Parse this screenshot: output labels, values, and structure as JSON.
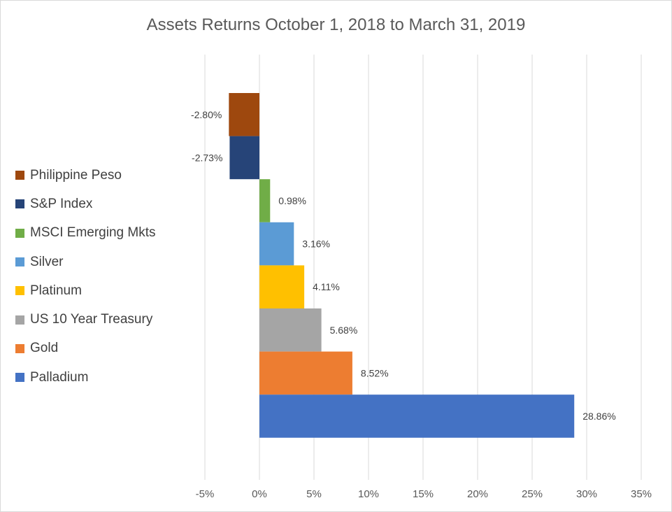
{
  "chart_data": {
    "type": "bar",
    "orientation": "horizontal",
    "title": "Assets Returns October 1, 2018 to March 31, 2019",
    "xlim": [
      -5,
      35
    ],
    "xticks": [
      -5,
      0,
      5,
      10,
      15,
      20,
      25,
      30,
      35
    ],
    "xtick_labels": [
      "-5%",
      "0%",
      "5%",
      "10%",
      "15%",
      "20%",
      "25%",
      "30%",
      "35%"
    ],
    "grid": "vertical",
    "legend_position": "left",
    "categories": [
      "Philippine Peso",
      "S&P Index",
      "MSCI Emerging Mkts",
      "Silver",
      "Platinum",
      "US 10 Year Treasury",
      "Gold",
      "Palladium"
    ],
    "values": [
      -2.8,
      -2.73,
      0.98,
      3.16,
      4.11,
      5.68,
      8.52,
      28.86
    ],
    "data_labels": [
      "-2.80%",
      "-2.73%",
      "0.98%",
      "3.16%",
      "4.11%",
      "5.68%",
      "8.52%",
      "28.86%"
    ],
    "colors": [
      "#9e480e",
      "#264478",
      "#70ad47",
      "#5b9bd5",
      "#ffc000",
      "#a5a5a5",
      "#ed7d31",
      "#4472c4"
    ]
  }
}
